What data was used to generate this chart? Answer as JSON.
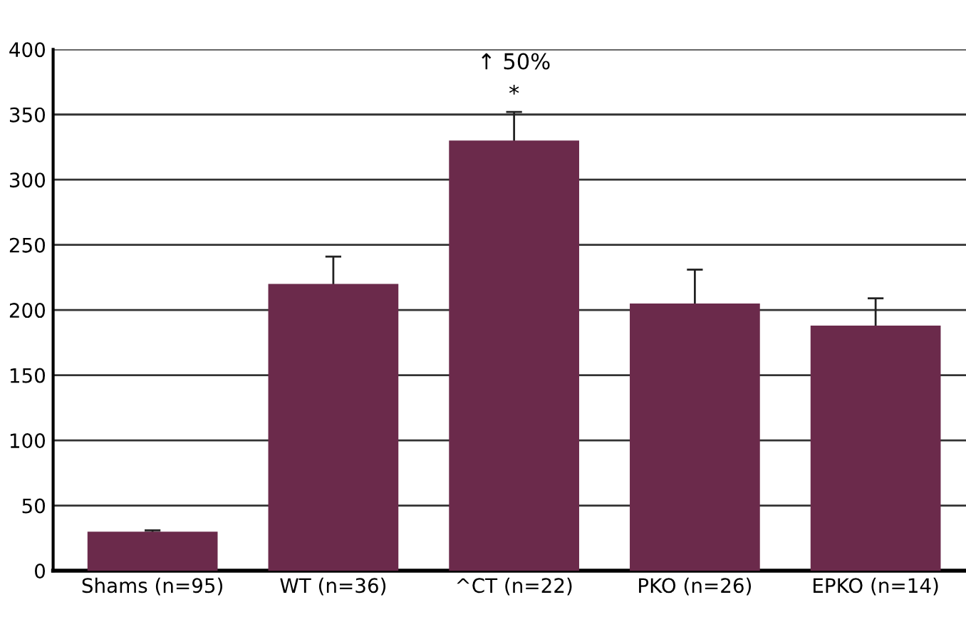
{
  "chart_data": {
    "type": "bar",
    "categories": [
      "Shams (n=95)",
      "WT (n=36)",
      "^CT (n=22)",
      "PKO (n=26)",
      "EPKO (n=14)"
    ],
    "values": [
      30,
      220,
      330,
      205,
      188
    ],
    "errors": [
      1,
      21,
      22,
      26,
      21
    ],
    "color": "#6b2a4b",
    "ylim": [
      0,
      400
    ],
    "yticks": [
      0,
      50,
      100,
      150,
      200,
      250,
      300,
      350,
      400
    ],
    "grid": "y",
    "annotations": [
      {
        "text": "*",
        "x": "^CT (n=22)",
        "y": 357
      },
      "↑ 50%"
    ]
  }
}
